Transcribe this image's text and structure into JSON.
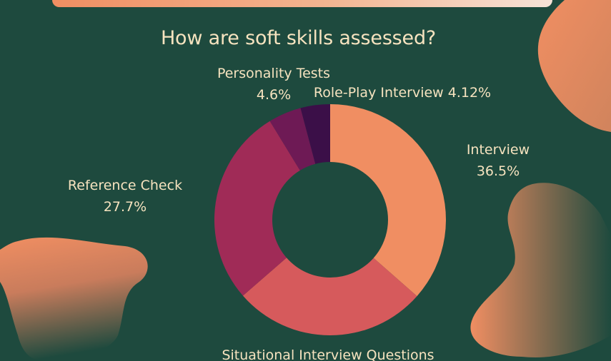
{
  "chart_data": {
    "type": "pie",
    "title": "How are soft skills assessed?",
    "donut": true,
    "slices": [
      {
        "label": "Interview",
        "value": 36.5,
        "value_label": "36.5%",
        "color": "#f08e62"
      },
      {
        "label": "Situational Interview Questions",
        "value": 27.08,
        "value_label": "",
        "color": "#d65a5c"
      },
      {
        "label": "Reference Check",
        "value": 27.7,
        "value_label": "27.7%",
        "color": "#a02b57"
      },
      {
        "label": "Personality Tests",
        "value": 4.6,
        "value_label": "4.6%",
        "color": "#6e1a55"
      },
      {
        "label": "Role-Play Interview",
        "value": 4.12,
        "value_label": "4.12%",
        "color": "#3b0f48"
      }
    ]
  }
}
